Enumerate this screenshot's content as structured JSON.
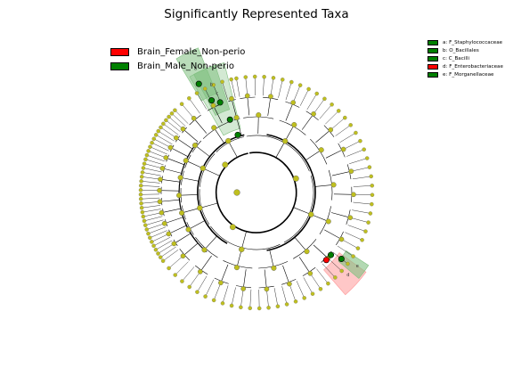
{
  "title": "Significantly Represented Taxa",
  "colors": {
    "female": "#ff0000",
    "male": "#008000",
    "node_default": "#bfbf1f",
    "female_shade": "#ff9999",
    "male_shade": "#80c080"
  },
  "legend": {
    "groups": [
      {
        "label": "Brain_Female_Non-perio",
        "color": "#ff0000"
      },
      {
        "label": "Brain_Male_Non-perio",
        "color": "#008000"
      }
    ],
    "clades": [
      {
        "label": "a: F_Staphylococcaceae",
        "color": "#008000"
      },
      {
        "label": "b: O_Bacillales",
        "color": "#008000"
      },
      {
        "label": "c: C_Bacilli",
        "color": "#008000"
      },
      {
        "label": "d: F_Enterobacteriaceae",
        "color": "#ff0000"
      },
      {
        "label": "e: F_Morganellaceae",
        "color": "#008000"
      }
    ]
  },
  "chart_data": {
    "type": "cladogram",
    "title": "Significantly Represented Taxa",
    "groups": [
      "Brain_Female_Non-perio",
      "Brain_Male_Non-perio"
    ],
    "enriched_clades": [
      {
        "label": "a",
        "name": "F_Staphylococcaceae",
        "group": "Brain_Male_Non-perio"
      },
      {
        "label": "b",
        "name": "O_Bacillales",
        "group": "Brain_Male_Non-perio"
      },
      {
        "label": "c",
        "name": "C_Bacilli",
        "group": "Brain_Male_Non-perio"
      },
      {
        "label": "d",
        "name": "F_Enterobacteriaceae",
        "group": "Brain_Female_Non-perio"
      },
      {
        "label": "e",
        "name": "F_Morganellaceae",
        "group": "Brain_Male_Non-perio"
      }
    ],
    "shade_labels": [
      "a",
      "b",
      "c",
      "d",
      "e"
    ]
  }
}
